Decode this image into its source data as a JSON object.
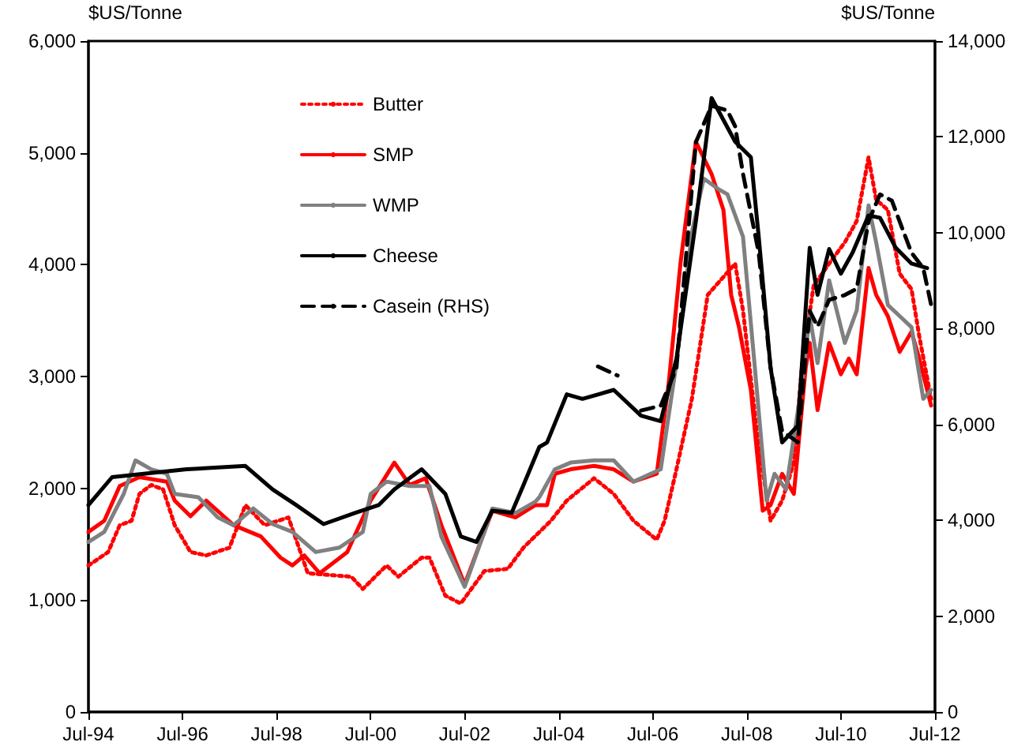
{
  "chart_data": {
    "type": "line",
    "ylabel": "$US/Tonne",
    "y2label": "$US/Tonne",
    "xlim": [
      "1994-07",
      "2012-07"
    ],
    "xticks": [
      {
        "value": "1994-07",
        "label": "Jul-94"
      },
      {
        "value": "1996-07",
        "label": "Jul-96"
      },
      {
        "value": "1998-07",
        "label": "Jul-98"
      },
      {
        "value": "2000-07",
        "label": "Jul-00"
      },
      {
        "value": "2002-07",
        "label": "Jul-02"
      },
      {
        "value": "2004-07",
        "label": "Jul-04"
      },
      {
        "value": "2006-07",
        "label": "Jul-06"
      },
      {
        "value": "2008-07",
        "label": "Jul-08"
      },
      {
        "value": "2010-07",
        "label": "Jul-10"
      },
      {
        "value": "2012-07",
        "label": "Jul-12"
      }
    ],
    "ylim": [
      0,
      6000
    ],
    "yticks": [
      0,
      {
        "value": 1000,
        "label": "1,000"
      },
      {
        "value": 2000,
        "label": "2,000"
      },
      {
        "value": 3000,
        "label": "3,000"
      },
      {
        "value": 4000,
        "label": "4,000"
      },
      {
        "value": 5000,
        "label": "5,000"
      },
      {
        "value": 6000,
        "label": "6,000"
      }
    ],
    "y2lim": [
      0,
      14000
    ],
    "y2ticks": [
      0,
      {
        "value": 2000,
        "label": "2,000"
      },
      {
        "value": 4000,
        "label": "4,000"
      },
      {
        "value": 6000,
        "label": "6,000"
      },
      {
        "value": 8000,
        "label": "8,000"
      },
      {
        "value": 10000,
        "label": "10,000"
      },
      {
        "value": 12000,
        "label": "12,000"
      },
      {
        "value": 14000,
        "label": "14,000"
      }
    ],
    "grid": false,
    "legend": "top left",
    "marker": "none",
    "series": [
      {
        "name": "Butter",
        "color": "#ff0000",
        "line_style": "dotted",
        "x": [
          "1994-07",
          "1994-12",
          "1995-03",
          "1995-06",
          "1995-08",
          "1995-11",
          "1996-02",
          "1996-05",
          "1996-09",
          "1997-01",
          "1997-07",
          "1997-11",
          "1998-04",
          "1998-10",
          "1999-03",
          "2000-02",
          "2000-05",
          "2000-11",
          "2001-02",
          "2001-08",
          "2001-10",
          "2002-02",
          "2002-06",
          "2002-12",
          "2003-06",
          "2003-10",
          "2004-05",
          "2004-09",
          "2005-04",
          "2005-09",
          "2006-02",
          "2006-08",
          "2006-10",
          "2007-01",
          "2007-05",
          "2007-09",
          "2007-12",
          "2008-04",
          "2008-06",
          "2008-10",
          "2009-01",
          "2009-04",
          "2009-07",
          "2009-09",
          "2009-12",
          "2010-04",
          "2010-08",
          "2010-11",
          "2011-02",
          "2011-04",
          "2011-07",
          "2011-10",
          "2012-01",
          "2012-03",
          "2012-06"
        ],
        "values": [
          1310,
          1430,
          1670,
          1710,
          1950,
          2030,
          1990,
          1670,
          1430,
          1400,
          1470,
          1850,
          1670,
          1740,
          1240,
          1210,
          1100,
          1310,
          1210,
          1380,
          1380,
          1040,
          970,
          1260,
          1280,
          1470,
          1710,
          1890,
          2090,
          1950,
          1710,
          1540,
          1710,
          2170,
          2800,
          3730,
          3850,
          4010,
          3590,
          2370,
          1710,
          1890,
          2230,
          3080,
          3810,
          4010,
          4200,
          4390,
          4960,
          4580,
          4490,
          3920,
          3780,
          3360,
          2800
        ]
      },
      {
        "name": "SMP",
        "color": "#ff0000",
        "line_style": "solid",
        "x": [
          "1994-07",
          "1994-11",
          "1995-03",
          "1995-08",
          "1996-03",
          "1996-05",
          "1996-09",
          "1997-01",
          "1997-08",
          "1998-03",
          "1998-08",
          "1998-11",
          "1999-02",
          "1999-06",
          "2000-01",
          "2000-07",
          "2001-01",
          "2001-05",
          "2001-09",
          "2002-01",
          "2002-07",
          "2002-12",
          "2003-02",
          "2003-08",
          "2004-01",
          "2004-04",
          "2004-06",
          "2004-10",
          "2005-04",
          "2005-09",
          "2006-02",
          "2006-08",
          "2006-11",
          "2007-02",
          "2007-06",
          "2007-10",
          "2008-01",
          "2008-03",
          "2008-05",
          "2008-08",
          "2008-11",
          "2009-01",
          "2009-04",
          "2009-07",
          "2009-10",
          "2009-11",
          "2010-01",
          "2010-04",
          "2010-07",
          "2010-09",
          "2010-11",
          "2011-02",
          "2011-04",
          "2011-07",
          "2011-10",
          "2012-01",
          "2012-03",
          "2012-06"
        ],
        "values": [
          1610,
          1710,
          2020,
          2100,
          2060,
          1890,
          1750,
          1890,
          1670,
          1570,
          1380,
          1310,
          1400,
          1240,
          1430,
          1890,
          2230,
          2030,
          2090,
          1670,
          1140,
          1610,
          1800,
          1740,
          1850,
          1850,
          2130,
          2170,
          2200,
          2170,
          2060,
          2130,
          2930,
          4010,
          5100,
          4810,
          4490,
          3730,
          3440,
          2880,
          1800,
          1850,
          2130,
          1950,
          3080,
          3300,
          2700,
          3300,
          3020,
          3160,
          3020,
          3970,
          3730,
          3540,
          3220,
          3400,
          3160,
          2740
        ]
      },
      {
        "name": "WMP",
        "color": "#808080",
        "line_style": "solid",
        "x": [
          "1994-07",
          "1994-11",
          "1995-04",
          "1995-07",
          "1995-11",
          "1996-03",
          "1996-05",
          "1996-11",
          "1997-04",
          "1997-08",
          "1998-01",
          "1998-06",
          "1998-11",
          "1999-05",
          "1999-11",
          "2000-05",
          "2000-07",
          "2000-11",
          "2001-05",
          "2001-10",
          "2002-01",
          "2002-07",
          "2002-12",
          "2003-02",
          "2003-08",
          "2004-01",
          "2004-02",
          "2004-06",
          "2004-10",
          "2005-04",
          "2005-09",
          "2006-02",
          "2006-09",
          "2007-01",
          "2007-05",
          "2007-08",
          "2007-12",
          "2008-02",
          "2008-06",
          "2008-09",
          "2008-12",
          "2009-02",
          "2009-05",
          "2009-09",
          "2009-11",
          "2010-01",
          "2010-04",
          "2010-08",
          "2010-11",
          "2011-02",
          "2011-04",
          "2011-07",
          "2011-10",
          "2012-01",
          "2012-04",
          "2012-06"
        ],
        "values": [
          1520,
          1610,
          1950,
          2250,
          2170,
          2130,
          1950,
          1920,
          1740,
          1670,
          1820,
          1680,
          1610,
          1430,
          1470,
          1610,
          1950,
          2060,
          2020,
          2020,
          1570,
          1120,
          1610,
          1820,
          1780,
          1880,
          1920,
          2170,
          2230,
          2250,
          2250,
          2060,
          2170,
          3120,
          4290,
          4770,
          4670,
          4630,
          4250,
          3080,
          1890,
          2130,
          1990,
          2930,
          3540,
          3120,
          3860,
          3300,
          3590,
          4530,
          4200,
          3640,
          3540,
          3440,
          2800,
          2880
        ]
      },
      {
        "name": "Cheese",
        "color": "#000000",
        "line_style": "solid",
        "x": [
          "1994-07",
          "1995-01",
          "1996-08",
          "1997-11",
          "1998-06",
          "1998-12",
          "1999-07",
          "2000-03",
          "2000-09",
          "2001-01",
          "2001-08",
          "2002-02",
          "2002-06",
          "2002-10",
          "2003-02",
          "2003-07",
          "2003-10",
          "2004-02",
          "2004-04",
          "2004-09",
          "2005-01",
          "2005-09",
          "2006-04",
          "2006-09",
          "2007-01",
          "2007-06",
          "2007-10",
          "2008-04",
          "2008-08",
          "2008-10",
          "2009-01",
          "2009-04",
          "2009-08",
          "2009-11",
          "2010-01",
          "2010-04",
          "2010-07",
          "2010-10",
          "2011-02",
          "2011-05",
          "2011-09",
          "2012-01",
          "2012-05"
        ],
        "values": [
          1850,
          2100,
          2170,
          2200,
          1990,
          1850,
          1680,
          1780,
          1850,
          1990,
          2170,
          1950,
          1570,
          1520,
          1800,
          1780,
          2030,
          2370,
          2410,
          2840,
          2800,
          2880,
          2650,
          2600,
          3160,
          4390,
          5490,
          5100,
          4960,
          4250,
          3080,
          2410,
          2560,
          4150,
          3730,
          4140,
          3920,
          4110,
          4440,
          4420,
          4150,
          4010,
          3970
        ]
      },
      {
        "name": "Casein (RHS)",
        "color": "#000000",
        "line_style": "dashed",
        "axis": "y2",
        "x": [
          "2005-05",
          "2005-10",
          "2006-01",
          "2006-04",
          "2006-09",
          "2007-01",
          "2007-06",
          "2007-10",
          "2008-02",
          "2008-04",
          "2008-06",
          "2008-10",
          "2009-01",
          "2009-04",
          "2009-08",
          "2009-11",
          "2010-01",
          "2010-04",
          "2010-08",
          "2010-11",
          "2011-02",
          "2011-05",
          "2011-08",
          "2011-11",
          "2012-01",
          "2012-04",
          "2012-06"
        ],
        "values": [
          7210,
          7020,
          null,
          6290,
          6390,
          7180,
          11890,
          12650,
          12550,
          12220,
          11230,
          9580,
          7180,
          5860,
          5630,
          8370,
          8040,
          8600,
          8700,
          8830,
          10240,
          10800,
          10670,
          10010,
          9580,
          9260,
          8500
        ]
      }
    ]
  }
}
